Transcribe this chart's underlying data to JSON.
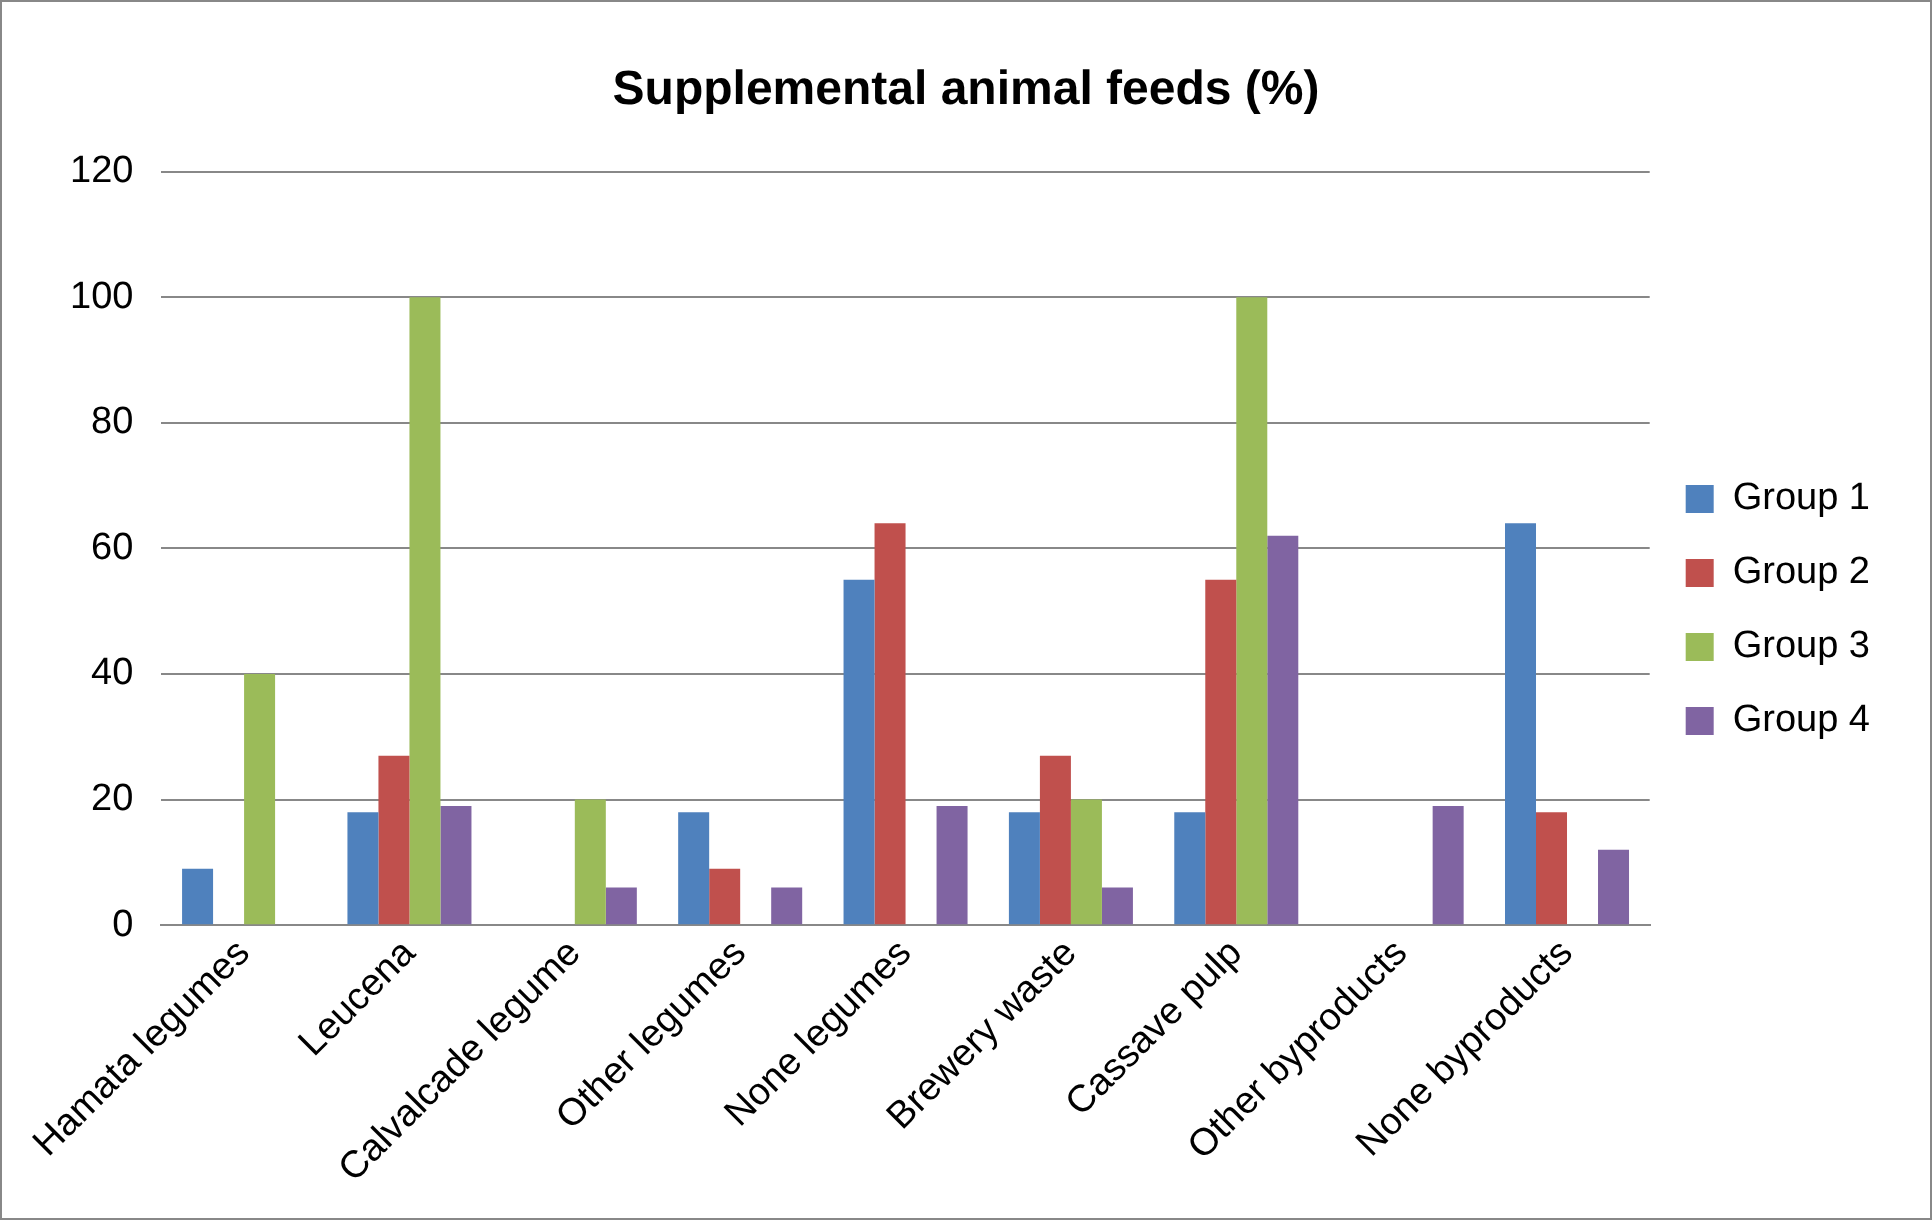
{
  "chart_data": {
    "type": "bar",
    "title": "Supplemental animal feeds (%)",
    "categories": [
      "Hamata legumes",
      "Leucena",
      "Calvalcade legume",
      "Other legumes",
      "None legumes",
      "Brewery waste",
      "Cassave pulp",
      "Other byproducts",
      "None byproducts"
    ],
    "series": [
      {
        "name": "Group 1",
        "color": "#4f81bd",
        "values": [
          9,
          18,
          0,
          18,
          55,
          18,
          18,
          0,
          64
        ]
      },
      {
        "name": "Group 2",
        "color": "#c0504d",
        "values": [
          0,
          27,
          0,
          9,
          64,
          27,
          55,
          0,
          18
        ]
      },
      {
        "name": "Group 3",
        "color": "#9bbb59",
        "values": [
          40,
          100,
          20,
          0,
          0,
          20,
          100,
          0,
          0
        ]
      },
      {
        "name": "Group 4",
        "color": "#8064a2",
        "values": [
          0,
          19,
          6,
          6,
          19,
          6,
          62,
          19,
          12
        ]
      }
    ],
    "ylim": [
      0,
      120
    ],
    "yticks": [
      0,
      20,
      40,
      60,
      80,
      100,
      120
    ],
    "grid": "y",
    "legend": "right"
  }
}
